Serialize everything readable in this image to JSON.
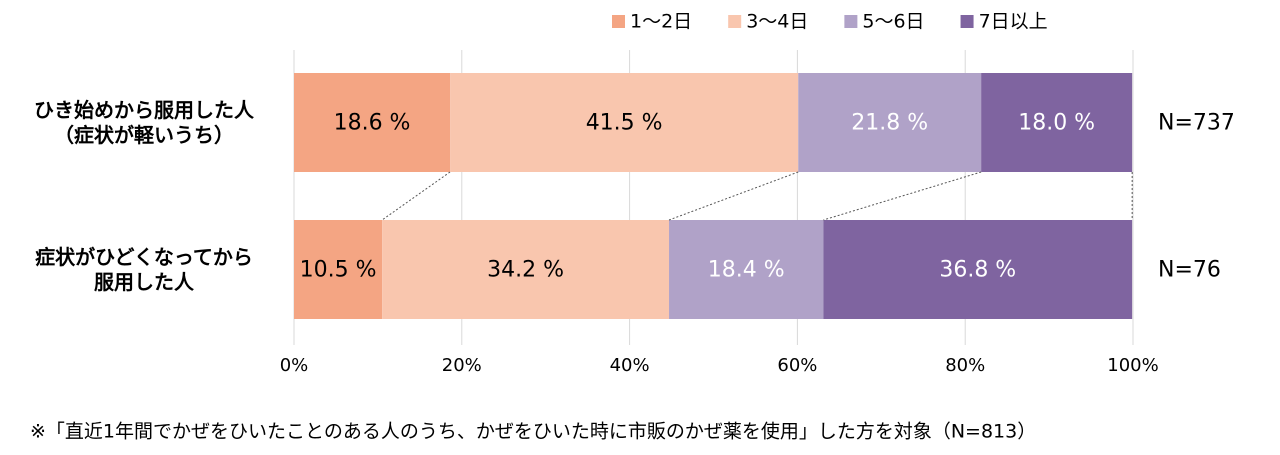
{
  "chart_data": {
    "type": "stacked-bar-horizontal",
    "categories": [
      "ひき始めから服用した人\n（症状が軽いうち）",
      "症状がひどくなってから\n服用した人"
    ],
    "series": [
      {
        "name": "1～2日",
        "color": "#f4a583",
        "label_color": "#000000",
        "values": [
          18.6,
          10.5
        ],
        "value_labels": [
          "18.6 %",
          "10.5 %"
        ]
      },
      {
        "name": "3～4日",
        "color": "#f9c6ae",
        "label_color": "#000000",
        "values": [
          41.5,
          34.2
        ],
        "value_labels": [
          "41.5 %",
          "34.2 %"
        ]
      },
      {
        "name": "5～6日",
        "color": "#b0a2c8",
        "label_color": "#ffffff",
        "values": [
          21.8,
          18.4
        ],
        "value_labels": [
          "21.8 %",
          "18.4 %"
        ]
      },
      {
        "name": "7日以上",
        "color": "#7f64a0",
        "label_color": "#ffffff",
        "values": [
          18.0,
          36.8
        ],
        "value_labels": [
          "18.0 %",
          "36.8 %"
        ]
      }
    ],
    "annotations": [
      "N=737",
      "N=76"
    ],
    "xlim": [
      0,
      100
    ],
    "xticks": [
      {
        "value": 0,
        "label": "0%"
      },
      {
        "value": 20,
        "label": "20%"
      },
      {
        "value": 40,
        "label": "40%"
      },
      {
        "value": 60,
        "label": "60%"
      },
      {
        "value": 80,
        "label": "80%"
      },
      {
        "value": 100,
        "label": "100%"
      }
    ],
    "grid": true,
    "legend": "top",
    "note": "※「直近1年間でかぜをひいたことのある人のうち、かぜをひいた時に市販のかぜ薬を使用」した方を対象（N=813）"
  }
}
